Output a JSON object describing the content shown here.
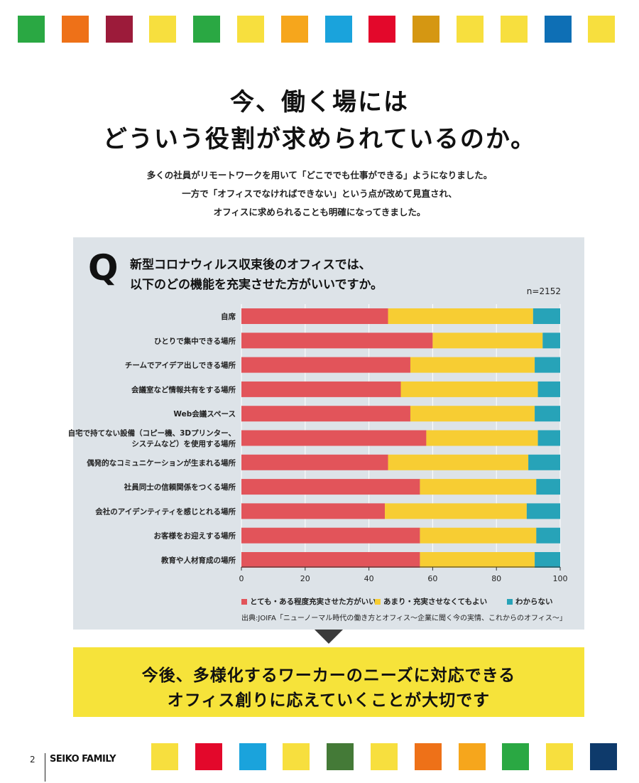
{
  "colors": {
    "very_much": "#e2545a",
    "somewhat": "#f7cd33",
    "unknown": "#27a3b8",
    "panel_bg": "#dde3e8",
    "callout_bg": "#f6e33a"
  },
  "top_squares": [
    "#2aa843",
    "#ee7118",
    "#9c1b3a",
    "#f7df3e",
    "#2aa843",
    "#f7df3e",
    "#f6a61c",
    "#1aa3dc",
    "#e3082b",
    "#d59712",
    "#f7df3e",
    "#f7df3e",
    "#0e6fb5",
    "#f7df3e"
  ],
  "bottom_squares": [
    "#f7df3e",
    "#e3082b",
    "#1aa3dc",
    "#f7df3e",
    "#447a37",
    "#f7df3e",
    "#ee7118",
    "#f6a61c",
    "#2aa843",
    "#f7df3e",
    "#0e3a6b"
  ],
  "title": {
    "line1": "今、働く場には",
    "line2": "どういう役割が求められているのか。"
  },
  "lead": {
    "line1": "多くの社員がリモートワークを用いて「どこででも仕事ができる」ようになりました。",
    "line2": "一方で「オフィスでなければできない」という点が改めて見直され、",
    "line3": "オフィスに求められることも明確になってきました。"
  },
  "question": {
    "mark": "Q",
    "line1": "新型コロナウィルス収束後のオフィスでは、",
    "line2": "以下のどの機能を充実させた方がいいですか。",
    "n": "n=2152"
  },
  "chart_data": {
    "type": "bar",
    "orientation": "horizontal",
    "stacked": true,
    "categories": [
      [
        "自席"
      ],
      [
        "ひとりで集中できる場所"
      ],
      [
        "チームでアイデア出しできる場所"
      ],
      [
        "会議室など情報共有をする場所"
      ],
      [
        "Web会議スペース"
      ],
      [
        "自宅で持てない設備（コピー機、3Dプリンター、",
        "システムなど）を使用する場所"
      ],
      [
        "偶発的なコミュニケーションが生まれる場所"
      ],
      [
        "社員同士の信頼関係をつくる場所"
      ],
      [
        "会社のアイデンティティを感じとれる場所"
      ],
      [
        "お客様をお迎えする場所"
      ],
      [
        "教育や人材育成の場所"
      ]
    ],
    "series": [
      {
        "name": "とても・ある程度充実させた方がいい",
        "values": [
          46,
          60,
          53,
          50,
          53,
          58,
          46,
          56,
          45,
          56,
          56
        ]
      },
      {
        "name": "あまり・充実させなくてもよい",
        "values": [
          45.5,
          34.5,
          39,
          43,
          39,
          35,
          44,
          36.5,
          44.5,
          36.5,
          36
        ]
      },
      {
        "name": "わからない",
        "values": [
          8.5,
          5.5,
          8,
          7,
          8,
          7,
          10,
          7.5,
          10.5,
          7.5,
          8
        ]
      }
    ],
    "xlim": [
      0,
      100
    ],
    "xticks": [
      "0",
      "20",
      "40",
      "60",
      "80",
      "100"
    ],
    "legend_position": "bottom"
  },
  "source": "出典:JOIFA「ニューノーマル時代の働き方とオフィス～企業に聞く今の実情、これからのオフィス～」",
  "callout": {
    "line1": "今後、多様化するワーカーのニーズに対応できる",
    "line2": "オフィス創りに応えていくことが大切です"
  },
  "footer": {
    "page": "2",
    "brand": "SEIKO FAMILY"
  }
}
